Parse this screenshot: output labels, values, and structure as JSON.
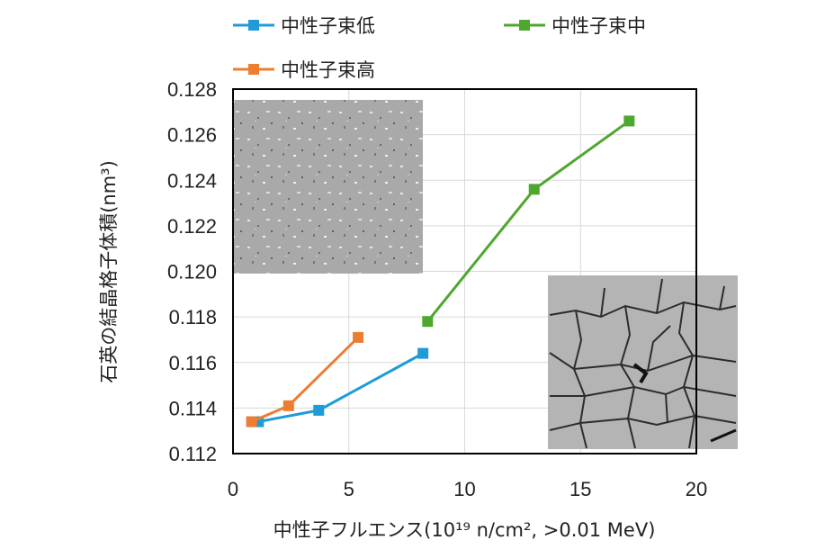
{
  "chart_data": {
    "type": "line",
    "xlabel": "中性子フルエンス(10¹⁹ n/cm², >0.01 MeV)",
    "ylabel": "石英の結晶格子体積(nm³)",
    "xlim": [
      0,
      20
    ],
    "ylim": [
      0.112,
      0.128
    ],
    "x_ticks": [
      "0",
      "5",
      "10",
      "15",
      "20"
    ],
    "y_ticks": [
      "0.112",
      "0.114",
      "0.116",
      "0.118",
      "0.120",
      "0.122",
      "0.124",
      "0.126",
      "0.128"
    ],
    "grid": true,
    "legend_position": "top",
    "series": [
      {
        "name": "中性子束低",
        "color": "#1f9bd7",
        "points": [
          [
            1.1,
            0.1134
          ],
          [
            3.7,
            0.1139
          ],
          [
            8.2,
            0.1164
          ]
        ]
      },
      {
        "name": "中性子束中",
        "color": "#4ea72e",
        "points": [
          [
            8.4,
            0.1178
          ],
          [
            13.0,
            0.1236
          ],
          [
            17.1,
            0.1266
          ]
        ]
      },
      {
        "name": "中性子束高",
        "color": "#ed7d31",
        "points": [
          [
            0.8,
            0.1134
          ],
          [
            2.4,
            0.1141
          ],
          [
            5.4,
            0.1171
          ]
        ]
      }
    ],
    "insets": [
      {
        "name": "micrograph-low-fluence",
        "color": "#a7a7a7"
      },
      {
        "name": "micrograph-high-fluence-cracked",
        "color": "#b4b4b4"
      }
    ]
  }
}
